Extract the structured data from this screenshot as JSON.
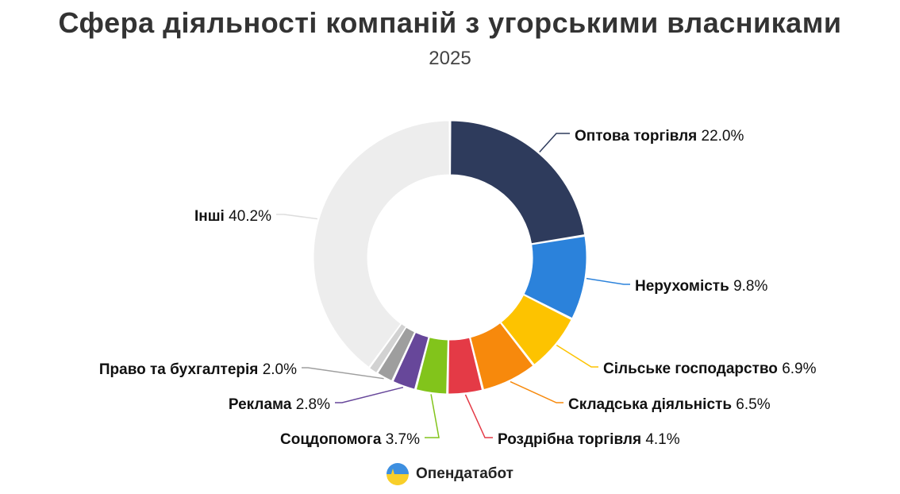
{
  "title": "Сфера діяльності компаній з угорськими власниками",
  "subtitle": "2025",
  "footer": {
    "brand": "Опендатабот",
    "logo_icon": "opendatabot-logo-icon"
  },
  "chart_data": {
    "type": "pie",
    "title": "Сфера діяльності компаній з угорськими власниками",
    "subtitle": "2025",
    "categories": [
      "Оптова торгівля",
      "Нерухомість",
      "Сільське господарство",
      "Складська діяльність",
      "Роздрібна торгівля",
      "Соцдопомога",
      "Реклама",
      "Право та бухгалтерія",
      "Інші"
    ],
    "values": [
      22.0,
      9.8,
      6.9,
      6.5,
      4.1,
      3.7,
      2.8,
      2.0,
      40.2
    ],
    "value_labels": [
      "22.0%",
      "9.8%",
      "6.9%",
      "6.5%",
      "4.1%",
      "3.7%",
      "2.8%",
      "2.0%",
      "40.2%"
    ],
    "colors": [
      "#2e3b5c",
      "#2b82db",
      "#fdc300",
      "#f7890c",
      "#e43a46",
      "#82c41b",
      "#67479a",
      "#9e9e9e",
      "#ededed"
    ],
    "extra_slice_color": "#d2d2d2",
    "donut": true,
    "legend": "none"
  }
}
